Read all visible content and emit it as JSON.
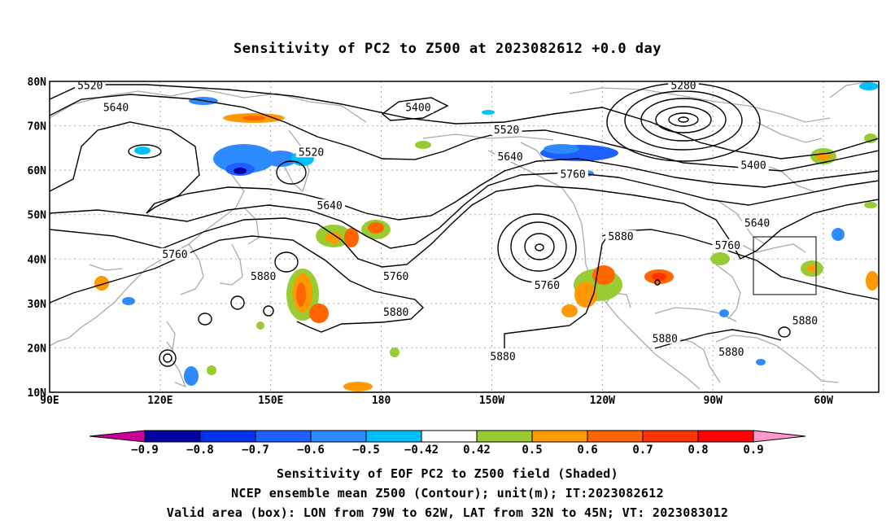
{
  "title": "Sensitivity of PC2 to Z500 at 2023082612 +0.0 day",
  "map": {
    "lat_labels": [
      "80N",
      "70N",
      "60N",
      "50N",
      "40N",
      "30N",
      "20N",
      "10N"
    ],
    "lon_labels": [
      "90E",
      "120E",
      "150E",
      "180",
      "150W",
      "120W",
      "90W",
      "60W"
    ],
    "contour_labels": [
      {
        "text": "5520",
        "lon": 101,
        "lat": 79
      },
      {
        "text": "5640",
        "lon": 108,
        "lat": 74
      },
      {
        "text": "5400",
        "lon": 190,
        "lat": 74
      },
      {
        "text": "5520",
        "lon": 161,
        "lat": 64
      },
      {
        "text": "5520",
        "lon": 214,
        "lat": 69
      },
      {
        "text": "5280",
        "lon": 262,
        "lat": 79
      },
      {
        "text": "5640",
        "lon": 215,
        "lat": 63
      },
      {
        "text": "5760",
        "lon": 232,
        "lat": 59
      },
      {
        "text": "5400",
        "lon": 281,
        "lat": 61
      },
      {
        "text": "5640",
        "lon": 166,
        "lat": 52
      },
      {
        "text": "5640",
        "lon": 282,
        "lat": 48
      },
      {
        "text": "5760",
        "lon": 124,
        "lat": 41
      },
      {
        "text": "5880",
        "lon": 148,
        "lat": 36
      },
      {
        "text": "5760",
        "lon": 184,
        "lat": 36
      },
      {
        "text": "5760",
        "lon": 225,
        "lat": 34
      },
      {
        "text": "5880",
        "lon": 184,
        "lat": 28
      },
      {
        "text": "5880",
        "lon": 245,
        "lat": 45
      },
      {
        "text": "5760",
        "lon": 274,
        "lat": 43
      },
      {
        "text": "5880",
        "lon": 295,
        "lat": 26
      },
      {
        "text": "5880",
        "lon": 257,
        "lat": 22
      },
      {
        "text": "5880",
        "lon": 213,
        "lat": 18
      },
      {
        "text": "5880",
        "lon": 275,
        "lat": 19
      }
    ],
    "valid_box": {
      "lon_min": 281,
      "lon_max": 298,
      "lat_min": 32,
      "lat_max": 45
    }
  },
  "colorbar": {
    "labels": [
      "-0.9",
      "-0.8",
      "-0.7",
      "-0.6",
      "-0.5",
      "-0.42",
      "0.42",
      "0.5",
      "0.6",
      "0.7",
      "0.8",
      "0.9"
    ],
    "colors": [
      "#cc0099",
      "#0000a0",
      "#0033ee",
      "#1e5fff",
      "#2d8bff",
      "#00bfff",
      "#ffffff",
      "#99cc33",
      "#ff9900",
      "#ff6600",
      "#ff3300",
      "#ff0000",
      "#ff99cc"
    ]
  },
  "caption": {
    "line1": "Sensitivity of EOF PC2 to Z500 field (Shaded)",
    "line2": "NCEP ensemble mean Z500 (Contour); unit(m); IT:2023082612",
    "line3": "Valid area (box): LON from 79W to 62W, LAT from 32N to 45N; VT: 2023083012"
  }
}
